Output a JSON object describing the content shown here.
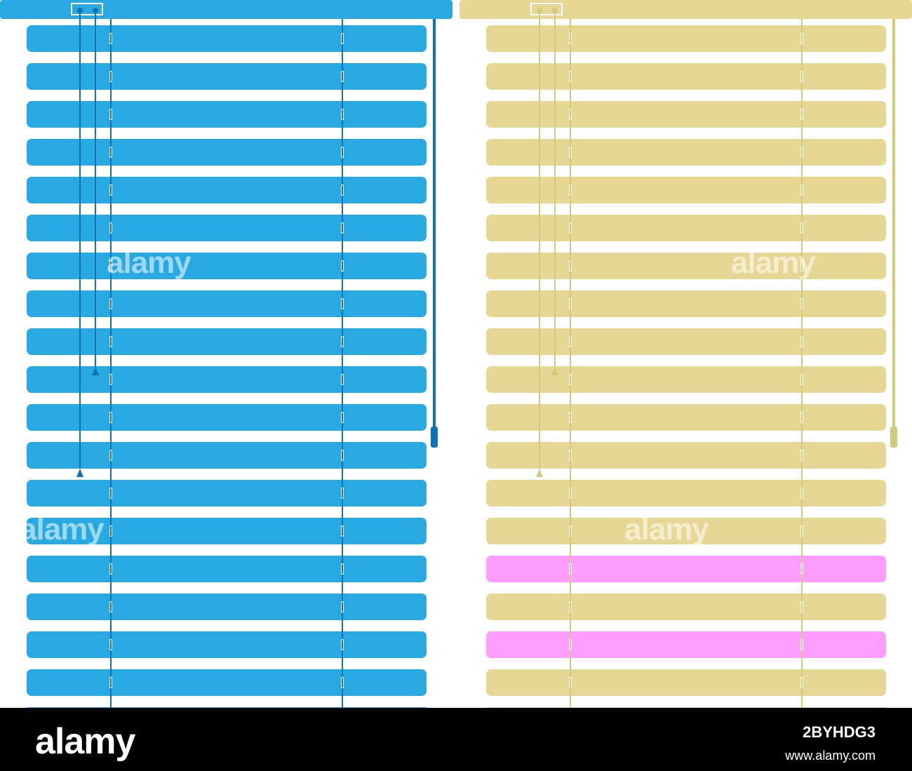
{
  "image": {
    "description": "Two venetian window blinds, blue and beige",
    "blinds": [
      {
        "name": "blue",
        "color": "#29a9e1",
        "cord_color": "#0f72b9",
        "slat_count": 19
      },
      {
        "name": "beige",
        "color": "#e6d894",
        "cord_color": "#cfca7c",
        "slat_count": 19,
        "highlight_color": "#ff9cff",
        "highlighted_slats": [
          14,
          16
        ]
      }
    ]
  },
  "watermark": {
    "text": "alamy",
    "footer_logo": "alamy",
    "image_id": "2BYHDG3",
    "url": "www.alamy.com"
  }
}
